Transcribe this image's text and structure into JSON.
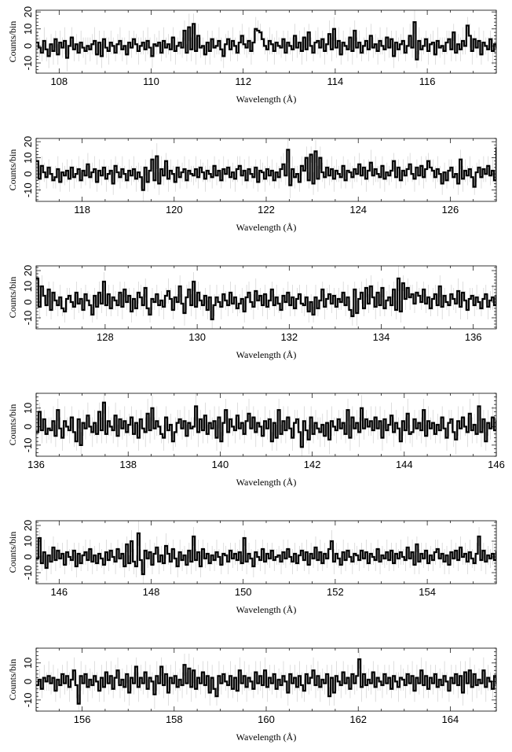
{
  "chart_data": [
    {
      "type": "line",
      "step": true,
      "xlabel": "Wavelength (Å)",
      "ylabel": "Counts/bin",
      "xlim": [
        107.5,
        117.5
      ],
      "ylim": [
        -16,
        21
      ],
      "xticks": [
        108,
        110,
        112,
        114,
        116
      ],
      "yticks": [
        -10,
        0,
        10,
        20
      ],
      "x_start": 107.5,
      "bin_width": 0.05,
      "values": [
        2,
        -1,
        -4,
        3,
        -2,
        -6,
        1,
        -3,
        4,
        -5,
        2,
        -1,
        3,
        -7,
        0,
        5,
        -2,
        1,
        -4,
        2,
        -1,
        -3,
        0,
        -2,
        1,
        3,
        -5,
        2,
        -6,
        4,
        -1,
        -3,
        2,
        0,
        -4,
        1,
        3,
        -2,
        0,
        -5,
        2,
        -1,
        4,
        1,
        -3,
        0,
        2,
        -2,
        3,
        -1,
        -6,
        1,
        0,
        2,
        -4,
        3,
        -1,
        1,
        -2,
        5,
        -3,
        0,
        2,
        -1,
        9,
        -4,
        11,
        -2,
        13,
        -3,
        6,
        -1,
        0,
        -5,
        2,
        -3,
        4,
        -1,
        0,
        3,
        -2,
        -6,
        1,
        4,
        -2,
        3,
        0,
        -4,
        2,
        6,
        1,
        -1,
        3,
        -3,
        2,
        10,
        9,
        8,
        4,
        0,
        -2,
        3,
        1,
        -3,
        2,
        0,
        -1,
        4,
        -4,
        2,
        0,
        -2,
        6,
        -1,
        2,
        -3,
        5,
        -2,
        8,
        0,
        -4,
        2,
        3,
        -1,
        4,
        -3,
        1,
        7,
        -2,
        10,
        -1,
        3,
        -5,
        2,
        0,
        -2,
        5,
        -3,
        9,
        -1,
        2,
        -4,
        0,
        3,
        -2,
        6,
        -1,
        1,
        -3,
        3,
        0,
        -2,
        5,
        -1,
        4,
        -6,
        2,
        -2,
        1,
        3,
        -4,
        0,
        6,
        -1,
        14,
        -8,
        3,
        -2,
        0,
        4,
        -3,
        1,
        2,
        -5,
        3,
        -1,
        0,
        -3,
        2,
        4,
        -2,
        8,
        -4,
        1,
        -2,
        3,
        0,
        12,
        6,
        -3,
        4,
        -1,
        3,
        -5,
        2,
        0,
        -2,
        4,
        -3,
        1,
        -1,
        2,
        -2,
        3,
        -4,
        1,
        2,
        -2,
        0,
        -1,
        1,
        -3
      ]
    },
    {
      "type": "line",
      "step": true,
      "xlabel": "Wavelength (Å)",
      "ylabel": "Counts/bin",
      "xlim": [
        117,
        127
      ],
      "ylim": [
        -17,
        22
      ],
      "xticks": [
        118,
        120,
        122,
        124,
        126
      ],
      "yticks": [
        -10,
        0,
        10,
        20
      ],
      "x_start": 117.0,
      "bin_width": 0.05,
      "values": [
        8,
        -3,
        5,
        1,
        -2,
        4,
        0,
        -4,
        -2,
        3,
        -5,
        1,
        -1,
        2,
        -3,
        4,
        -2,
        0,
        3,
        -4,
        2,
        -1,
        6,
        -2,
        1,
        3,
        -5,
        2,
        -1,
        4,
        -3,
        0,
        2,
        -6,
        5,
        1,
        -2,
        3,
        0,
        -4,
        2,
        -1,
        3,
        -3,
        1,
        -2,
        -10,
        4,
        -5,
        2,
        9,
        -4,
        11,
        -6,
        3,
        -1,
        8,
        -3,
        2,
        0,
        -5,
        4,
        -2,
        1,
        3,
        -4,
        2,
        0,
        -1,
        3,
        -2,
        4,
        1,
        -3,
        2,
        0,
        -2,
        5,
        -1,
        2,
        -4,
        3,
        0,
        4,
        -2,
        1,
        -3,
        3,
        5,
        -1,
        2,
        -4,
        3,
        0,
        -2,
        4,
        -5,
        2,
        1,
        -3,
        3,
        -1,
        2,
        -4,
        1,
        -2,
        3,
        6,
        -1,
        15,
        -7,
        3,
        -2,
        0,
        -5,
        5,
        2,
        10,
        -4,
        12,
        -6,
        14,
        -3,
        10,
        1,
        -2,
        4,
        -1,
        3,
        -3,
        2,
        0,
        -2,
        5,
        -4,
        2,
        1,
        -2,
        3,
        0,
        6,
        -1,
        4,
        -3,
        2,
        7,
        -1,
        3,
        0,
        -2,
        5,
        -3,
        1,
        -1,
        2,
        8,
        -2,
        4,
        -4,
        2,
        -1,
        3,
        6,
        0,
        -3,
        4,
        -1,
        5,
        -2,
        3,
        8,
        4,
        2,
        -2,
        3,
        0,
        -6,
        1,
        -4,
        2,
        4,
        -2,
        0,
        -6,
        9,
        -3,
        2,
        -1,
        3,
        -2,
        -8,
        1,
        4,
        -2,
        3,
        0,
        5,
        -1,
        2,
        -4,
        16,
        -3,
        5,
        1,
        -2,
        10,
        -5,
        9
      ]
    },
    {
      "type": "line",
      "step": true,
      "xlabel": "Wavelength (Å)",
      "ylabel": "Counts/bin",
      "xlim": [
        126.5,
        136.5
      ],
      "ylim": [
        -17,
        23
      ],
      "xticks": [
        128,
        130,
        132,
        134,
        136
      ],
      "yticks": [
        -10,
        0,
        10,
        20
      ],
      "x_start": 126.5,
      "bin_width": 0.05,
      "values": [
        15,
        -3,
        10,
        4,
        -2,
        8,
        -5,
        6,
        1,
        -2,
        3,
        -4,
        -6,
        2,
        4,
        0,
        -3,
        6,
        -1,
        2,
        -5,
        5,
        1,
        -2,
        -8,
        4,
        -3,
        6,
        -1,
        13,
        -2,
        5,
        -4,
        3,
        1,
        -2,
        6,
        -3,
        8,
        0,
        4,
        -6,
        2,
        -4,
        6,
        3,
        -2,
        9,
        -4,
        -8,
        2,
        0,
        5,
        -2,
        1,
        -3,
        4,
        7,
        2,
        -5,
        3,
        0,
        10,
        -1,
        -7,
        3,
        8,
        -2,
        13,
        -3,
        6,
        1,
        -2,
        4,
        -5,
        3,
        -11,
        -2,
        3,
        0,
        -3,
        5,
        1,
        -2,
        6,
        -1,
        3,
        -4,
        -1,
        2,
        -6,
        3,
        6,
        0,
        -3,
        7,
        1,
        4,
        -2,
        5,
        -3,
        1,
        8,
        -2,
        3,
        -1,
        -5,
        4,
        0,
        6,
        -2,
        3,
        -4,
        2,
        5,
        -1,
        -2,
        3,
        -6,
        0,
        -8,
        3,
        -4,
        1,
        8,
        -3,
        2,
        5,
        -1,
        4,
        -3,
        2,
        0,
        6,
        -2,
        3,
        -5,
        -9,
        8,
        -7,
        2,
        6,
        -4,
        9,
        -1,
        10,
        3,
        -3,
        6,
        -2,
        9,
        -4,
        1,
        3,
        -2,
        8,
        -5,
        15,
        -6,
        12,
        2,
        9,
        3,
        5,
        -1,
        6,
        4,
        0,
        8,
        -1,
        3,
        -4,
        2,
        5,
        -2,
        10,
        -3,
        4,
        0,
        -2,
        5,
        2,
        -1,
        7,
        -3,
        6,
        1,
        -5,
        2,
        4,
        -2,
        3,
        0,
        -4,
        2,
        5,
        -3,
        1,
        3,
        -2,
        4,
        0,
        6,
        -1,
        10
      ]
    },
    {
      "type": "line",
      "step": true,
      "xlabel": "Wavelength (Å)",
      "ylabel": "Counts/bin",
      "xlim": [
        136,
        146
      ],
      "ylim": [
        -16,
        18
      ],
      "xticks": [
        136,
        138,
        140,
        142,
        144,
        146
      ],
      "yticks": [
        -10,
        0,
        10
      ],
      "x_start": 136.0,
      "bin_width": 0.05,
      "values": [
        -3,
        8,
        -2,
        4,
        -4,
        -1,
        -2,
        3,
        -5,
        9,
        -1,
        -6,
        3,
        0,
        -2,
        5,
        -3,
        -8,
        4,
        -10,
        2,
        -1,
        6,
        0,
        -3,
        2,
        -4,
        8,
        -2,
        13,
        -4,
        3,
        0,
        -2,
        6,
        -5,
        4,
        -1,
        3,
        -3,
        1,
        5,
        -4,
        2,
        -6,
        4,
        -1,
        -3,
        7,
        -2,
        10,
        -1,
        3,
        0,
        -4,
        -6,
        5,
        -2,
        1,
        -8,
        -3,
        2,
        4,
        -1,
        3,
        -5,
        2,
        -1,
        0,
        11,
        -3,
        4,
        -2,
        6,
        -4,
        2,
        -1,
        3,
        -6,
        5,
        -8,
        2,
        9,
        -3,
        4,
        0,
        -2,
        6,
        -1,
        2,
        -4,
        3,
        7,
        -1,
        5,
        -3,
        2,
        0,
        -5,
        3,
        -1,
        4,
        -8,
        2,
        -6,
        9,
        -4,
        3,
        -2,
        5,
        -1,
        -6,
        2,
        4,
        -3,
        -11,
        3,
        -2,
        -7,
        5,
        -4,
        2,
        -1,
        -3,
        1,
        -5,
        2,
        -7,
        3,
        0,
        -2,
        4,
        -1,
        2,
        -4,
        9,
        -6,
        5,
        -1,
        2,
        -3,
        10,
        -1,
        4,
        0,
        3,
        -2,
        5,
        -1,
        3,
        -6,
        4,
        -2,
        1,
        6,
        -3,
        2,
        -1,
        -8,
        3,
        -2,
        7,
        -4,
        -3,
        4,
        -1,
        2,
        -2,
        9,
        -5,
        3,
        -1,
        2,
        -4,
        1,
        -2,
        5,
        -1,
        -6,
        2,
        4,
        -3,
        -7,
        3,
        -1,
        5,
        0,
        -3,
        7,
        -2,
        1,
        -4,
        11,
        -3,
        4,
        -8,
        2,
        -1,
        5,
        -2,
        3
      ]
    },
    {
      "type": "line",
      "step": true,
      "xlabel": "Wavelength (Å)",
      "ylabel": "Counts/bin",
      "xlim": [
        145.5,
        155.5
      ],
      "ylim": [
        -17,
        23
      ],
      "xticks": [
        146,
        148,
        150,
        152,
        154
      ],
      "yticks": [
        -10,
        0,
        10,
        20
      ],
      "x_start": 145.5,
      "bin_width": 0.05,
      "values": [
        -1,
        12,
        -4,
        3,
        -7,
        1,
        -3,
        6,
        -2,
        4,
        -1,
        2,
        -5,
        3,
        0,
        -2,
        4,
        -6,
        2,
        -4,
        1,
        3,
        -2,
        5,
        -3,
        1,
        -4,
        2,
        -1,
        -5,
        3,
        -2,
        4,
        0,
        -3,
        5,
        -1,
        2,
        -6,
        8,
        -4,
        10,
        -3,
        -6,
        15,
        -2,
        -11,
        4,
        -1,
        3,
        -5,
        2,
        6,
        -3,
        1,
        -4,
        7,
        2,
        -3,
        5,
        -1,
        -6,
        3,
        -2,
        1,
        -5,
        4,
        -3,
        13,
        -2,
        3,
        -6,
        5,
        -1,
        2,
        -4,
        1,
        -2,
        3,
        0,
        -5,
        2,
        1,
        -3,
        4,
        -1,
        2,
        -2,
        3,
        -4,
        12,
        -3,
        2,
        -1,
        -6,
        3,
        0,
        -2,
        5,
        -3,
        2,
        -1,
        4,
        -2,
        0,
        1,
        -3,
        3,
        -1,
        5,
        0,
        -3,
        2,
        -4,
        1,
        4,
        -2,
        3,
        -5,
        2,
        -1,
        6,
        -2,
        3,
        -4,
        2,
        -1,
        5,
        10,
        -3,
        2,
        -1,
        -5,
        3,
        -2,
        4,
        0,
        -3,
        2,
        1,
        -2,
        4,
        -1,
        3,
        -4,
        2,
        0,
        -2,
        5,
        -3,
        1,
        -1,
        3,
        -2,
        4,
        -4,
        2,
        -1,
        3,
        0,
        -2,
        6,
        -1,
        3,
        -5,
        8,
        -3,
        2,
        -1,
        4,
        -4,
        1,
        -2,
        3,
        5,
        -1,
        2,
        -3,
        1,
        -5,
        3,
        -1,
        4,
        -2,
        6,
        0,
        2,
        -3,
        3,
        -1,
        -4,
        2,
        13,
        -2,
        4,
        -3,
        1,
        -1,
        2,
        -2,
        3,
        0,
        -2,
        1,
        3
      ]
    },
    {
      "type": "line",
      "step": true,
      "xlabel": "Wavelength (Å)",
      "ylabel": "Counts/bin",
      "xlim": [
        155,
        165
      ],
      "ylim": [
        -16,
        18
      ],
      "xticks": [
        156,
        158,
        160,
        162,
        164
      ],
      "yticks": [
        -10,
        0,
        10
      ],
      "x_start": 155.0,
      "bin_width": 0.05,
      "values": [
        -2,
        1,
        -4,
        2,
        0,
        3,
        -1,
        2,
        -5,
        1,
        -2,
        4,
        -1,
        3,
        -3,
        1,
        6,
        -2,
        -12,
        3,
        -1,
        4,
        -3,
        1,
        -2,
        3,
        0,
        -5,
        2,
        -3,
        5,
        -1,
        3,
        -4,
        2,
        6,
        -2,
        1,
        -3,
        4,
        -6,
        2,
        -1,
        8,
        -3,
        2,
        -1,
        5,
        -4,
        2,
        0,
        -7,
        3,
        -1,
        8,
        -2,
        4,
        -6,
        2,
        -1,
        3,
        -3,
        1,
        -2,
        9,
        -1,
        7,
        -3,
        6,
        -4,
        2,
        -1,
        5,
        -2,
        3,
        -6,
        2,
        -4,
        -8,
        3,
        -1,
        4,
        0,
        -2,
        3,
        -4,
        2,
        -5,
        6,
        -1,
        3,
        -3,
        2,
        0,
        -4,
        5,
        -1,
        3,
        -2,
        6,
        -3,
        2,
        -1,
        4,
        -4,
        1,
        -2,
        3,
        0,
        -6,
        4,
        -1,
        2,
        -3,
        3,
        -2,
        -5,
        4,
        -1,
        2,
        6,
        -2,
        3,
        -3,
        1,
        -1,
        4,
        -8,
        2,
        -6,
        3,
        0,
        -2,
        5,
        -1,
        2,
        -4,
        4,
        -1,
        3,
        12,
        -3,
        4,
        -2,
        1,
        -1,
        5,
        -3,
        2,
        0,
        -2,
        4,
        -1,
        2,
        -4,
        3,
        0,
        -3,
        2,
        1,
        -2,
        4,
        -1,
        3,
        -5,
        2,
        -1,
        6,
        -2,
        3,
        -4,
        2,
        -1,
        4,
        -3,
        1,
        -2,
        3,
        0,
        -5,
        2,
        -1,
        4,
        -2,
        3,
        -6,
        5,
        -1,
        6,
        -3,
        4,
        -2,
        1,
        -1,
        6,
        -3,
        2,
        0,
        -4,
        3,
        -1,
        2,
        -2,
        4,
        -1,
        3,
        0,
        -2,
        5,
        -3
      ]
    }
  ]
}
